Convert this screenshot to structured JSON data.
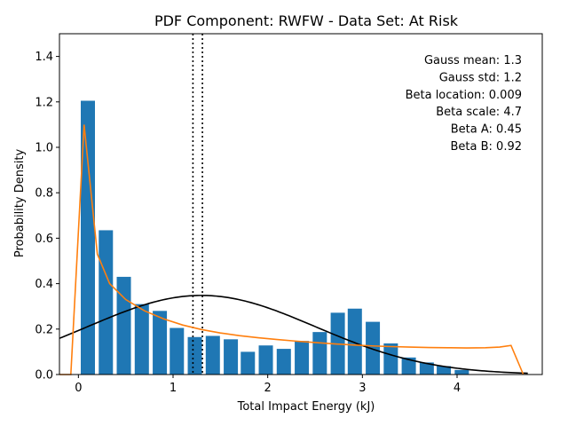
{
  "chart_data": {
    "type": "bar",
    "title": "PDF Component: RWFW - Data Set: At Risk",
    "xlabel": "Total Impact Energy (kJ)",
    "ylabel": "Probability Density",
    "xlim": [
      -0.2,
      4.9
    ],
    "ylim": [
      0,
      1.5
    ],
    "xticks": [
      0,
      1,
      2,
      3,
      4
    ],
    "yticks": [
      0.0,
      0.2,
      0.4,
      0.6,
      0.8,
      1.0,
      1.2,
      1.4
    ],
    "ytick_labels": [
      "0.0",
      "0.2",
      "0.4",
      "0.6",
      "0.8",
      "1.0",
      "1.2",
      "1.4"
    ],
    "grid": false,
    "bar_color": "#1f77b4",
    "bar_width": 0.15,
    "histogram": {
      "centers": [
        0.1,
        0.29,
        0.48,
        0.67,
        0.86,
        1.04,
        1.23,
        1.42,
        1.61,
        1.79,
        1.98,
        2.17,
        2.36,
        2.55,
        2.74,
        2.92,
        3.11,
        3.3,
        3.49,
        3.68,
        3.86,
        4.05
      ],
      "values": [
        1.205,
        0.635,
        0.43,
        0.31,
        0.28,
        0.205,
        0.165,
        0.17,
        0.155,
        0.1,
        0.128,
        0.113,
        0.148,
        0.187,
        0.272,
        0.29,
        0.232,
        0.137,
        0.075,
        0.053,
        0.037,
        0.02
      ]
    },
    "series": [
      {
        "name": "Gaussian fit",
        "kind": "line",
        "color": "#000000",
        "mean": 1.3,
        "std": 1.2,
        "scale": 1.0473
      },
      {
        "name": "Beta fit",
        "kind": "line",
        "color": "#ff7f0e",
        "x": [
          -0.2,
          -0.08,
          0.06,
          0.2,
          0.33,
          0.5,
          0.7,
          0.9,
          1.1,
          1.3,
          1.5,
          1.7,
          1.9,
          2.1,
          2.3,
          2.5,
          2.7,
          2.9,
          3.1,
          3.3,
          3.5,
          3.7,
          3.9,
          4.1,
          4.3,
          4.45,
          4.57,
          4.7
        ],
        "y": [
          0.0,
          0.0,
          1.1,
          0.53,
          0.4,
          0.33,
          0.28,
          0.245,
          0.218,
          0.198,
          0.183,
          0.171,
          0.162,
          0.154,
          0.147,
          0.141,
          0.135,
          0.13,
          0.126,
          0.123,
          0.121,
          0.119,
          0.118,
          0.117,
          0.118,
          0.121,
          0.128,
          0.0
        ]
      }
    ],
    "vlines": [
      {
        "x": 1.21,
        "style": "dotted",
        "color": "#000000"
      },
      {
        "x": 1.31,
        "style": "dotted",
        "color": "#000000"
      }
    ],
    "annotations": [
      "Gauss mean: 1.3",
      "Gauss std: 1.2",
      "Beta location: 0.009",
      "Beta scale: 4.7",
      "Beta A: 0.45",
      "Beta B: 0.92"
    ],
    "annotation_placement": "top-right"
  }
}
